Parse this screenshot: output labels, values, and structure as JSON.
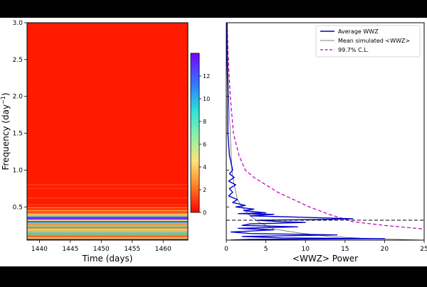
{
  "chart_data": [
    {
      "type": "heatmap",
      "title": "",
      "xlabel": "Time (days)",
      "ylabel_main": "Frequency (day",
      "ylabel_sup": "−1",
      "ylabel_close": ")",
      "xlim": [
        1438,
        1464
      ],
      "ylim": [
        0.05,
        3.0
      ],
      "xticks": [
        1440,
        1445,
        1450,
        1455,
        1460
      ],
      "yticks": [
        0.5,
        1.0,
        1.5,
        2.0,
        2.5,
        3.0
      ],
      "xtick_labels": [
        "1440",
        "1445",
        "1450",
        "1455",
        "1460"
      ],
      "ytick_labels": [
        "0.5",
        "1.0",
        "1.5",
        "2.0",
        "2.5",
        "3.0"
      ],
      "colormap": "rainbow",
      "background_color": "#ff1a00",
      "bands": [
        {
          "f": 0.08,
          "value": 6
        },
        {
          "f": 0.1,
          "value": 2
        },
        {
          "f": 0.12,
          "value": 9
        },
        {
          "f": 0.14,
          "value": 3
        },
        {
          "f": 0.16,
          "value": 8
        },
        {
          "f": 0.18,
          "value": 4
        },
        {
          "f": 0.2,
          "value": 6
        },
        {
          "f": 0.22,
          "value": 2
        },
        {
          "f": 0.24,
          "value": 7
        },
        {
          "f": 0.26,
          "value": 3
        },
        {
          "f": 0.28,
          "value": 8
        },
        {
          "f": 0.3,
          "value": 12
        },
        {
          "f": 0.32,
          "value": 5
        },
        {
          "f": 0.34,
          "value": 13
        },
        {
          "f": 0.36,
          "value": 12
        },
        {
          "f": 0.38,
          "value": 7
        },
        {
          "f": 0.4,
          "value": 4
        },
        {
          "f": 0.42,
          "value": 2
        },
        {
          "f": 0.45,
          "value": 3
        },
        {
          "f": 0.49,
          "value": 2
        },
        {
          "f": 0.53,
          "value": 1
        },
        {
          "f": 0.62,
          "value": 1
        },
        {
          "f": 0.75,
          "value": 1
        },
        {
          "f": 0.8,
          "value": 1
        }
      ]
    },
    {
      "type": "colorbar",
      "range": [
        0,
        14
      ],
      "ticks": [
        0,
        2,
        4,
        6,
        8,
        10,
        12
      ],
      "tick_labels": [
        "0",
        "2",
        "4",
        "6",
        "8",
        "10",
        "12"
      ]
    },
    {
      "type": "line",
      "xlabel": "<WWZ> Power",
      "ylabel": "",
      "xlim": [
        0,
        25
      ],
      "ylim": [
        0.05,
        3.0
      ],
      "xticks": [
        0,
        5,
        10,
        15,
        20,
        25
      ],
      "xtick_labels": [
        "0",
        "5",
        "10",
        "15",
        "20",
        "25"
      ],
      "yticks": [
        0.5,
        1.0,
        1.5,
        2.0,
        2.5,
        3.0
      ],
      "legend_position": "top-right",
      "hline": {
        "y": 0.32,
        "style": "dashed",
        "color": "#000000"
      },
      "series": [
        {
          "name": "Average WWZ",
          "color": "#0000cc",
          "style": "solid",
          "points": [
            [
              0.1,
              3.0
            ],
            [
              0.1,
              2.5
            ],
            [
              0.2,
              2.0
            ],
            [
              0.2,
              1.5
            ],
            [
              0.4,
              1.2
            ],
            [
              0.8,
              1.0
            ],
            [
              0.4,
              0.95
            ],
            [
              1.0,
              0.9
            ],
            [
              0.3,
              0.85
            ],
            [
              1.2,
              0.8
            ],
            [
              0.4,
              0.75
            ],
            [
              0.8,
              0.7
            ],
            [
              0.3,
              0.65
            ],
            [
              1.4,
              0.6
            ],
            [
              0.8,
              0.56
            ],
            [
              2.4,
              0.52
            ],
            [
              1.2,
              0.5
            ],
            [
              3.5,
              0.47
            ],
            [
              2.2,
              0.45
            ],
            [
              5.0,
              0.42
            ],
            [
              1.5,
              0.41
            ],
            [
              6.0,
              0.4
            ],
            [
              3.0,
              0.38
            ],
            [
              9.5,
              0.36
            ],
            [
              16.0,
              0.34
            ],
            [
              12.0,
              0.33
            ],
            [
              4.0,
              0.32
            ],
            [
              7.0,
              0.3
            ],
            [
              10.0,
              0.29
            ],
            [
              3.0,
              0.27
            ],
            [
              2.0,
              0.25
            ],
            [
              9.0,
              0.23
            ],
            [
              1.5,
              0.21
            ],
            [
              6.0,
              0.19
            ],
            [
              0.6,
              0.16
            ],
            [
              3.0,
              0.14
            ],
            [
              14.0,
              0.12
            ],
            [
              2.0,
              0.1
            ],
            [
              7.0,
              0.08
            ],
            [
              20.0,
              0.07
            ],
            [
              3.0,
              0.06
            ],
            [
              0.5,
              0.05
            ]
          ]
        },
        {
          "name": "Mean simulated <WWZ>",
          "color": "#555555",
          "style": "solid",
          "points": [
            [
              0.1,
              3.0
            ],
            [
              0.2,
              2.5
            ],
            [
              0.3,
              2.0
            ],
            [
              0.5,
              1.5
            ],
            [
              0.7,
              1.0
            ],
            [
              1.0,
              0.8
            ],
            [
              1.4,
              0.6
            ],
            [
              2.0,
              0.5
            ],
            [
              2.8,
              0.4
            ],
            [
              4.0,
              0.3
            ],
            [
              6.0,
              0.2
            ],
            [
              9.0,
              0.15
            ],
            [
              13.0,
              0.1
            ],
            [
              18.0,
              0.07
            ],
            [
              25.0,
              0.05
            ]
          ]
        },
        {
          "name": "99.7% C.L.",
          "color": "#bb00bb",
          "style": "dashed",
          "points": [
            [
              0.1,
              3.0
            ],
            [
              0.25,
              2.5
            ],
            [
              0.5,
              2.0
            ],
            [
              0.9,
              1.5
            ],
            [
              1.6,
              1.2
            ],
            [
              2.4,
              1.0
            ],
            [
              3.5,
              0.9
            ],
            [
              5.0,
              0.8
            ],
            [
              6.5,
              0.7
            ],
            [
              8.5,
              0.6
            ],
            [
              10.5,
              0.5
            ],
            [
              13.0,
              0.4
            ],
            [
              16.0,
              0.3
            ],
            [
              20.0,
              0.25
            ],
            [
              25.0,
              0.2
            ]
          ]
        }
      ]
    }
  ]
}
